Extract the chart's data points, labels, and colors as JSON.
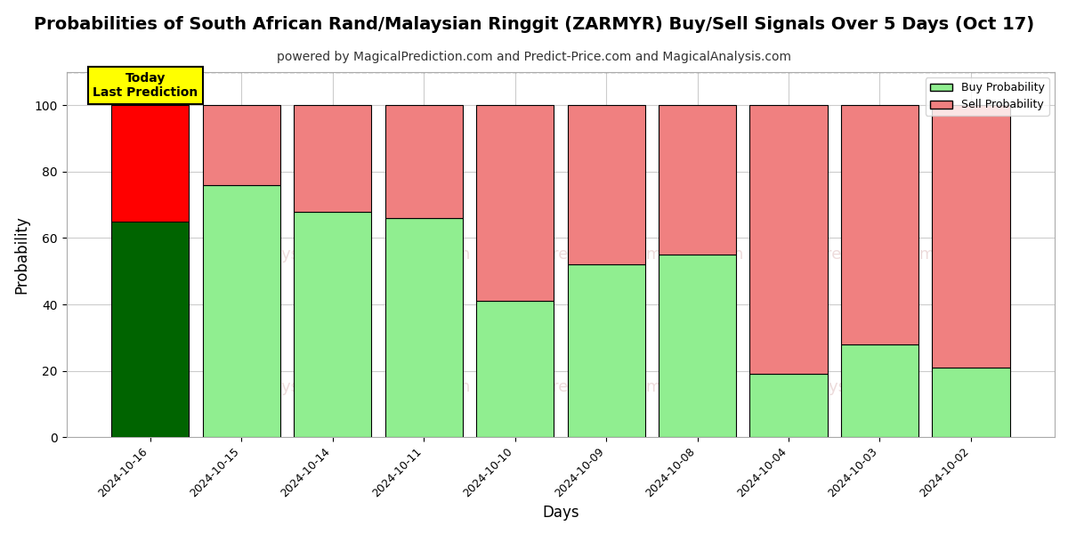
{
  "title": "Probabilities of South African Rand/Malaysian Ringgit (ZARMYR) Buy/Sell Signals Over 5 Days (Oct 17)",
  "subtitle": "powered by MagicalPrediction.com and Predict-Price.com and MagicalAnalysis.com",
  "xlabel": "Days",
  "ylabel": "Probability",
  "categories": [
    "2024-10-16",
    "2024-10-15",
    "2024-10-14",
    "2024-10-11",
    "2024-10-10",
    "2024-10-09",
    "2024-10-08",
    "2024-10-04",
    "2024-10-03",
    "2024-10-02"
  ],
  "buy_values": [
    65,
    76,
    68,
    66,
    41,
    52,
    55,
    19,
    28,
    21
  ],
  "sell_values": [
    35,
    24,
    32,
    34,
    59,
    48,
    45,
    81,
    72,
    79
  ],
  "buy_color_first": "#006400",
  "buy_color_rest": "#90EE90",
  "sell_color_first": "#FF0000",
  "sell_color_rest": "#F08080",
  "bar_edge_color": "#000000",
  "bar_width": 0.85,
  "ylim": [
    0,
    110
  ],
  "yticks": [
    0,
    20,
    40,
    60,
    80,
    100
  ],
  "dashed_line_y": 110,
  "legend_buy_label": "Buy Probability",
  "legend_sell_label": "Sell Probability",
  "annotation_text": "Today\nLast Prediction",
  "annotation_bg": "#FFFF00",
  "background_color": "#ffffff",
  "grid_color": "#cccccc",
  "title_fontsize": 14,
  "subtitle_fontsize": 10,
  "axis_label_fontsize": 12,
  "watermark1": "calAnalysis.com",
  "watermark2": "MagicIPrediction.com",
  "watermark3": "n",
  "watermark_color": "#cc9999",
  "watermark_alpha": 0.35
}
